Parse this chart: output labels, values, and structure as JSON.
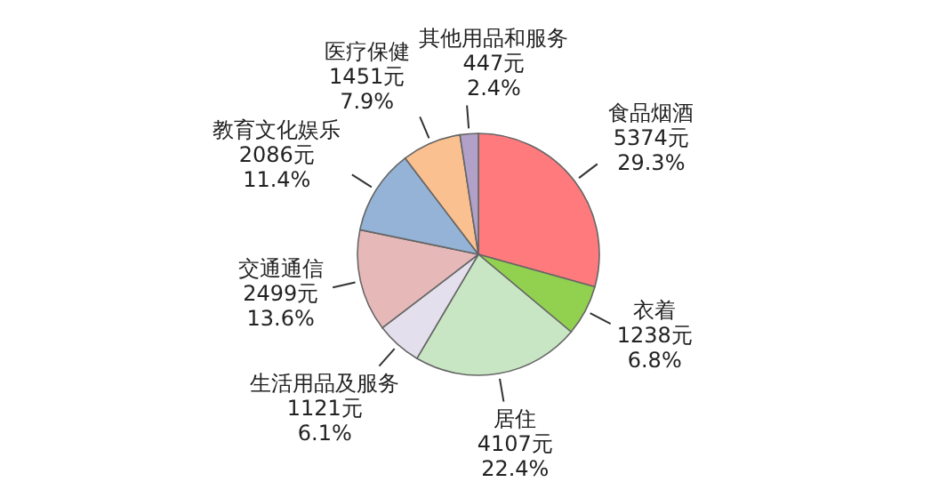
{
  "chart_data": {
    "type": "pie",
    "categories": [
      "食品烟酒",
      "衣着",
      "居住",
      "生活用品及服务",
      "交通通信",
      "教育文化娱乐",
      "医疗保健",
      "其他用品和服务"
    ],
    "values": [
      5374,
      1238,
      4107,
      1121,
      2499,
      2086,
      1451,
      447
    ],
    "value_labels": [
      "5374元\n29.3%",
      "1238元\n6.8%",
      "4107元\n22.4%",
      "1121元\n6.1%",
      "2499元\n13.6%",
      "2086元\n11.4%",
      "1451元\n7.9%",
      "447元\n2.4%"
    ],
    "colors": [
      "#fe7a7c",
      "#92d050",
      "#c8e6c4",
      "#e4dfec",
      "#e6b9b8",
      "#95b3d7",
      "#fac08f",
      "#b1a0c7"
    ]
  }
}
